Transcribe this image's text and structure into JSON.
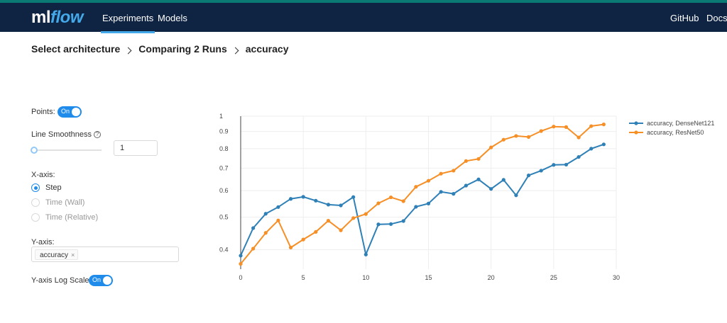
{
  "nav": {
    "logo_ml": "ml",
    "logo_flow": "flow",
    "links": [
      "Experiments",
      "Models"
    ],
    "right_links": [
      "GitHub",
      "Docs"
    ]
  },
  "breadcrumb": [
    "Select architecture",
    "Comparing 2 Runs",
    "accuracy"
  ],
  "controls": {
    "points_label": "Points:",
    "points_toggle": "On",
    "smoothness_label": "Line Smoothness",
    "smoothness_help_icon": "question-circle-icon",
    "smoothness_value": "1",
    "xaxis_label": "X-axis:",
    "xaxis_options": [
      "Step",
      "Time (Wall)",
      "Time (Relative)"
    ],
    "xaxis_selected": "Step",
    "yaxis_label": "Y-axis:",
    "yaxis_tag": "accuracy",
    "yaxis_tag_close": "×",
    "logscale_label": "Y-axis Log Scale:",
    "logscale_toggle": "On"
  },
  "colors": {
    "nav_bg": "#0f2343",
    "accent": "#1f8ceb",
    "series_blue": "#2e80b7",
    "series_orange": "#f68f26"
  },
  "chart_data": {
    "type": "line",
    "xlabel": "",
    "ylabel": "",
    "xlim": [
      0,
      30
    ],
    "ylim": [
      0.35,
      1.0
    ],
    "y_scale": "log",
    "x_ticks": [
      0,
      5,
      10,
      15,
      20,
      25,
      30
    ],
    "y_ticks": [
      0.4,
      0.5,
      0.6,
      0.7,
      0.8,
      0.9,
      1
    ],
    "y_tick_labels": [
      "0.4",
      "0.5",
      "0.6",
      "0.7",
      "0.8",
      "0.9",
      "1"
    ],
    "legend_position": "top-right",
    "series": [
      {
        "name": "accuracy, DenseNet121",
        "color": "#2e80b7",
        "x": [
          0,
          1,
          2,
          3,
          4,
          5,
          6,
          7,
          8,
          9,
          10,
          11,
          12,
          13,
          14,
          15,
          16,
          17,
          18,
          19,
          20,
          21,
          22,
          23,
          24,
          25,
          26,
          27,
          28,
          29
        ],
        "y": [
          0.384,
          0.464,
          0.512,
          0.536,
          0.567,
          0.575,
          0.56,
          0.545,
          0.542,
          0.574,
          0.387,
          0.476,
          0.477,
          0.487,
          0.537,
          0.549,
          0.595,
          0.587,
          0.621,
          0.648,
          0.607,
          0.646,
          0.581,
          0.666,
          0.688,
          0.716,
          0.717,
          0.756,
          0.8,
          0.824
        ]
      },
      {
        "name": "accuracy, ResNet50",
        "color": "#f68f26",
        "x": [
          0,
          1,
          2,
          3,
          4,
          5,
          6,
          7,
          8,
          9,
          10,
          11,
          12,
          13,
          14,
          15,
          16,
          17,
          18,
          19,
          20,
          21,
          22,
          23,
          24,
          25,
          26,
          27,
          28,
          29
        ],
        "y": [
          0.363,
          0.403,
          0.449,
          0.489,
          0.406,
          0.429,
          0.452,
          0.488,
          0.457,
          0.497,
          0.511,
          0.55,
          0.573,
          0.558,
          0.616,
          0.642,
          0.674,
          0.688,
          0.735,
          0.746,
          0.807,
          0.851,
          0.873,
          0.867,
          0.903,
          0.931,
          0.928,
          0.864,
          0.934,
          0.945
        ]
      }
    ]
  }
}
